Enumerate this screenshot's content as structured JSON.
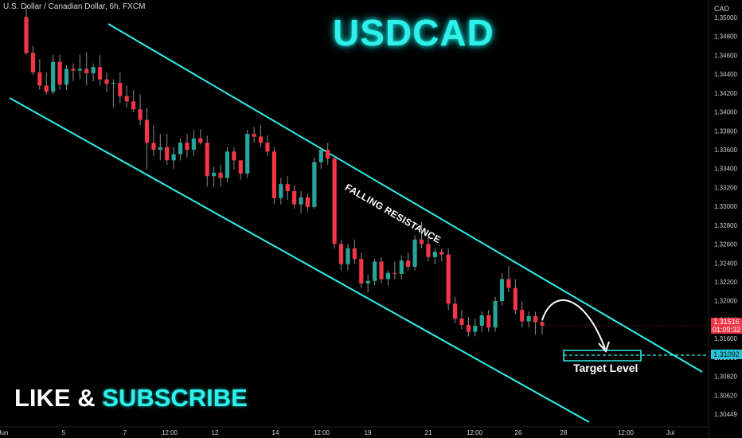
{
  "symbol_label": "U.S. Dollar / Canadian Dollar, 6h, FXCM",
  "title": "USDCAD",
  "cta": {
    "part1": "LIKE",
    "part2": "&",
    "part3": "SUBSCRIBE"
  },
  "currency": "CAD",
  "resistance_label": "FALLING RESISTANCE",
  "target_label": "Target Level",
  "current_price": {
    "value": "1.31516",
    "countdown": "01:09:32"
  },
  "target_price": "1.31092",
  "colors": {
    "bull": "#26a69a",
    "bear": "#f23645",
    "channel": "#2ff0ea",
    "background": "#000000"
  },
  "chart_data": {
    "type": "candlestick",
    "ylim": [
      1.3038,
      1.3515
    ],
    "y_ticks": [
      "1.35000",
      "1.34800",
      "1.34600",
      "1.34400",
      "1.34200",
      "1.34000",
      "1.33800",
      "1.33600",
      "1.33400",
      "1.33200",
      "1.33000",
      "1.32800",
      "1.32600",
      "1.32400",
      "1.32200",
      "1.32000",
      "1.31800",
      "1.31600",
      "1.31000",
      "1.30820",
      "1.30620",
      "1.30449"
    ],
    "x_ticks": [
      "Jun",
      "5",
      "7",
      "12:00",
      "12",
      "14",
      "12:00",
      "19",
      "21",
      "12:00",
      "26",
      "28",
      "12:00",
      "Jul"
    ],
    "candles": [
      {
        "o": 1.3503,
        "h": 1.3515,
        "l": 1.346,
        "c": 1.3462
      },
      {
        "o": 1.3462,
        "h": 1.347,
        "l": 1.3437,
        "c": 1.344
      },
      {
        "o": 1.344,
        "h": 1.3455,
        "l": 1.342,
        "c": 1.3425
      },
      {
        "o": 1.3425,
        "h": 1.344,
        "l": 1.3415,
        "c": 1.3418
      },
      {
        "o": 1.3418,
        "h": 1.346,
        "l": 1.3415,
        "c": 1.3452
      },
      {
        "o": 1.3452,
        "h": 1.346,
        "l": 1.342,
        "c": 1.3426
      },
      {
        "o": 1.3426,
        "h": 1.3448,
        "l": 1.342,
        "c": 1.3444
      },
      {
        "o": 1.3444,
        "h": 1.345,
        "l": 1.343,
        "c": 1.3442
      },
      {
        "o": 1.3442,
        "h": 1.346,
        "l": 1.3432,
        "c": 1.3444
      },
      {
        "o": 1.3444,
        "h": 1.3463,
        "l": 1.3425,
        "c": 1.3439
      },
      {
        "o": 1.3439,
        "h": 1.345,
        "l": 1.343,
        "c": 1.3446
      },
      {
        "o": 1.3446,
        "h": 1.346,
        "l": 1.3425,
        "c": 1.3432
      },
      {
        "o": 1.3432,
        "h": 1.344,
        "l": 1.3418,
        "c": 1.3427
      },
      {
        "o": 1.3427,
        "h": 1.3432,
        "l": 1.34,
        "c": 1.3428
      },
      {
        "o": 1.3428,
        "h": 1.344,
        "l": 1.3405,
        "c": 1.3413
      },
      {
        "o": 1.3413,
        "h": 1.3425,
        "l": 1.34,
        "c": 1.3407
      },
      {
        "o": 1.3407,
        "h": 1.342,
        "l": 1.3395,
        "c": 1.3398
      },
      {
        "o": 1.3398,
        "h": 1.3415,
        "l": 1.338,
        "c": 1.3386
      },
      {
        "o": 1.3386,
        "h": 1.34,
        "l": 1.333,
        "c": 1.336
      },
      {
        "o": 1.336,
        "h": 1.338,
        "l": 1.3345,
        "c": 1.3352
      },
      {
        "o": 1.3352,
        "h": 1.337,
        "l": 1.334,
        "c": 1.3355
      },
      {
        "o": 1.3355,
        "h": 1.337,
        "l": 1.3335,
        "c": 1.334
      },
      {
        "o": 1.334,
        "h": 1.3355,
        "l": 1.333,
        "c": 1.3347
      },
      {
        "o": 1.3347,
        "h": 1.3365,
        "l": 1.334,
        "c": 1.336
      },
      {
        "o": 1.336,
        "h": 1.337,
        "l": 1.3343,
        "c": 1.3352
      },
      {
        "o": 1.3352,
        "h": 1.3375,
        "l": 1.3345,
        "c": 1.3365
      },
      {
        "o": 1.3365,
        "h": 1.3375,
        "l": 1.3358,
        "c": 1.336
      },
      {
        "o": 1.336,
        "h": 1.3368,
        "l": 1.331,
        "c": 1.3322
      },
      {
        "o": 1.3322,
        "h": 1.3333,
        "l": 1.331,
        "c": 1.3326
      },
      {
        "o": 1.3326,
        "h": 1.3335,
        "l": 1.331,
        "c": 1.332
      },
      {
        "o": 1.332,
        "h": 1.3355,
        "l": 1.3315,
        "c": 1.335
      },
      {
        "o": 1.335,
        "h": 1.3355,
        "l": 1.333,
        "c": 1.334
      },
      {
        "o": 1.334,
        "h": 1.334,
        "l": 1.3318,
        "c": 1.3325
      },
      {
        "o": 1.3325,
        "h": 1.3375,
        "l": 1.332,
        "c": 1.337
      },
      {
        "o": 1.337,
        "h": 1.3378,
        "l": 1.336,
        "c": 1.3367
      },
      {
        "o": 1.3367,
        "h": 1.338,
        "l": 1.3355,
        "c": 1.336
      },
      {
        "o": 1.336,
        "h": 1.3368,
        "l": 1.3345,
        "c": 1.335
      },
      {
        "o": 1.335,
        "h": 1.3355,
        "l": 1.329,
        "c": 1.3297
      },
      {
        "o": 1.3297,
        "h": 1.332,
        "l": 1.329,
        "c": 1.3313
      },
      {
        "o": 1.3313,
        "h": 1.3322,
        "l": 1.3295,
        "c": 1.3305
      },
      {
        "o": 1.3305,
        "h": 1.3312,
        "l": 1.3285,
        "c": 1.329
      },
      {
        "o": 1.329,
        "h": 1.3305,
        "l": 1.328,
        "c": 1.3298
      },
      {
        "o": 1.3298,
        "h": 1.3302,
        "l": 1.3282,
        "c": 1.3287
      },
      {
        "o": 1.3287,
        "h": 1.3343,
        "l": 1.3285,
        "c": 1.3338
      },
      {
        "o": 1.3338,
        "h": 1.3355,
        "l": 1.333,
        "c": 1.3352
      },
      {
        "o": 1.3352,
        "h": 1.336,
        "l": 1.3335,
        "c": 1.3342
      },
      {
        "o": 1.3342,
        "h": 1.3345,
        "l": 1.324,
        "c": 1.3245
      },
      {
        "o": 1.3245,
        "h": 1.325,
        "l": 1.3215,
        "c": 1.3222
      },
      {
        "o": 1.3222,
        "h": 1.3245,
        "l": 1.3215,
        "c": 1.324
      },
      {
        "o": 1.324,
        "h": 1.325,
        "l": 1.3222,
        "c": 1.3228
      },
      {
        "o": 1.3228,
        "h": 1.3235,
        "l": 1.3195,
        "c": 1.32
      },
      {
        "o": 1.32,
        "h": 1.321,
        "l": 1.319,
        "c": 1.3203
      },
      {
        "o": 1.3203,
        "h": 1.3228,
        "l": 1.3198,
        "c": 1.3225
      },
      {
        "o": 1.3225,
        "h": 1.323,
        "l": 1.32,
        "c": 1.3205
      },
      {
        "o": 1.3205,
        "h": 1.3215,
        "l": 1.3198,
        "c": 1.3212
      },
      {
        "o": 1.3212,
        "h": 1.3225,
        "l": 1.3205,
        "c": 1.3211
      },
      {
        "o": 1.3211,
        "h": 1.3232,
        "l": 1.3205,
        "c": 1.3226
      },
      {
        "o": 1.3226,
        "h": 1.3235,
        "l": 1.3215,
        "c": 1.3219
      },
      {
        "o": 1.3219,
        "h": 1.3255,
        "l": 1.3215,
        "c": 1.325
      },
      {
        "o": 1.325,
        "h": 1.327,
        "l": 1.324,
        "c": 1.3245
      },
      {
        "o": 1.3245,
        "h": 1.3252,
        "l": 1.3225,
        "c": 1.323
      },
      {
        "o": 1.323,
        "h": 1.324,
        "l": 1.3222,
        "c": 1.3236
      },
      {
        "o": 1.3236,
        "h": 1.324,
        "l": 1.3225,
        "c": 1.3233
      },
      {
        "o": 1.3233,
        "h": 1.324,
        "l": 1.317,
        "c": 1.3177
      },
      {
        "o": 1.3177,
        "h": 1.3185,
        "l": 1.3155,
        "c": 1.316
      },
      {
        "o": 1.316,
        "h": 1.317,
        "l": 1.3148,
        "c": 1.3153
      },
      {
        "o": 1.3153,
        "h": 1.3162,
        "l": 1.314,
        "c": 1.3145
      },
      {
        "o": 1.3145,
        "h": 1.316,
        "l": 1.314,
        "c": 1.3152
      },
      {
        "o": 1.3152,
        "h": 1.3168,
        "l": 1.3145,
        "c": 1.3164
      },
      {
        "o": 1.3164,
        "h": 1.317,
        "l": 1.3145,
        "c": 1.315
      },
      {
        "o": 1.315,
        "h": 1.3185,
        "l": 1.3145,
        "c": 1.318
      },
      {
        "o": 1.318,
        "h": 1.3212,
        "l": 1.3175,
        "c": 1.3205
      },
      {
        "o": 1.3205,
        "h": 1.322,
        "l": 1.319,
        "c": 1.3195
      },
      {
        "o": 1.3195,
        "h": 1.3205,
        "l": 1.3165,
        "c": 1.317
      },
      {
        "o": 1.317,
        "h": 1.318,
        "l": 1.315,
        "c": 1.3157
      },
      {
        "o": 1.3157,
        "h": 1.3168,
        "l": 1.315,
        "c": 1.3163
      },
      {
        "o": 1.3163,
        "h": 1.3168,
        "l": 1.3142,
        "c": 1.3156
      },
      {
        "o": 1.3156,
        "h": 1.316,
        "l": 1.3142,
        "c": 1.3152
      }
    ],
    "target_level": 1.31092
  }
}
